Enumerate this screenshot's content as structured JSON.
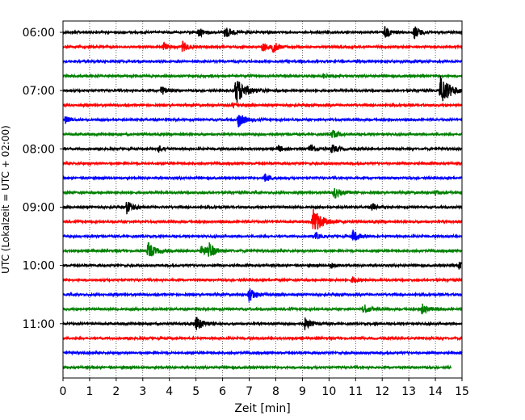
{
  "chart_data": {
    "type": "line",
    "xlabel": "Zeit  [min]",
    "ylabel": "UTC (Lokalzeit = UTC + 02:00)",
    "xlim": [
      0,
      15
    ],
    "x_ticks": [
      0,
      1,
      2,
      3,
      4,
      5,
      6,
      7,
      8,
      9,
      10,
      11,
      12,
      13,
      14,
      15
    ],
    "y_tick_labels": [
      "06:00",
      "07:00",
      "08:00",
      "09:00",
      "10:00",
      "11:00"
    ],
    "grid": "vertical-dotted",
    "colors": [
      "#000000",
      "#ff0000",
      "#0000ff",
      "#008000"
    ],
    "traces": [
      {
        "time": "06:00",
        "color": "#000000",
        "events": [
          {
            "t": 5.1,
            "a": 0.7
          },
          {
            "t": 6.1,
            "a": 1.0
          },
          {
            "t": 12.1,
            "a": 0.9
          },
          {
            "t": 13.2,
            "a": 1.0
          }
        ]
      },
      {
        "time": "06:15",
        "color": "#ff0000",
        "events": [
          {
            "t": 3.8,
            "a": 0.6
          },
          {
            "t": 4.5,
            "a": 0.8
          },
          {
            "t": 7.5,
            "a": 0.7
          },
          {
            "t": 7.9,
            "a": 0.8
          }
        ]
      },
      {
        "time": "06:30",
        "color": "#0000ff",
        "events": []
      },
      {
        "time": "06:45",
        "color": "#008000",
        "events": [
          {
            "t": 9.8,
            "a": 0.4
          }
        ]
      },
      {
        "time": "07:00",
        "color": "#000000",
        "events": [
          {
            "t": 3.7,
            "a": 0.7
          },
          {
            "t": 6.5,
            "a": 2.1
          },
          {
            "t": 14.2,
            "a": 2.2
          }
        ]
      },
      {
        "time": "07:15",
        "color": "#ff0000",
        "events": [
          {
            "t": 6.4,
            "a": 0.4
          }
        ]
      },
      {
        "time": "07:30",
        "color": "#0000ff",
        "events": [
          {
            "t": 0.1,
            "a": 0.5
          },
          {
            "t": 6.6,
            "a": 1.1
          }
        ]
      },
      {
        "time": "07:45",
        "color": "#008000",
        "events": [
          {
            "t": 10.1,
            "a": 0.7
          }
        ]
      },
      {
        "time": "08:00",
        "color": "#000000",
        "events": [
          {
            "t": 3.6,
            "a": 0.5
          },
          {
            "t": 8.1,
            "a": 0.5
          },
          {
            "t": 9.3,
            "a": 0.7
          },
          {
            "t": 10.1,
            "a": 0.7
          }
        ]
      },
      {
        "time": "08:15",
        "color": "#ff0000",
        "events": []
      },
      {
        "time": "08:30",
        "color": "#0000ff",
        "events": [
          {
            "t": 7.6,
            "a": 0.6
          }
        ]
      },
      {
        "time": "08:45",
        "color": "#008000",
        "events": [
          {
            "t": 10.2,
            "a": 0.9
          },
          {
            "t": 14.0,
            "a": 0.4
          }
        ]
      },
      {
        "time": "09:00",
        "color": "#000000",
        "events": [
          {
            "t": 2.4,
            "a": 1.0
          },
          {
            "t": 11.6,
            "a": 0.6
          }
        ]
      },
      {
        "time": "09:15",
        "color": "#ff0000",
        "events": [
          {
            "t": 9.4,
            "a": 2.0
          }
        ]
      },
      {
        "time": "09:30",
        "color": "#0000ff",
        "events": [
          {
            "t": 9.5,
            "a": 0.5
          },
          {
            "t": 10.9,
            "a": 0.9
          }
        ]
      },
      {
        "time": "09:45",
        "color": "#008000",
        "events": [
          {
            "t": 3.2,
            "a": 1.3
          },
          {
            "t": 5.2,
            "a": 0.9
          },
          {
            "t": 5.5,
            "a": 1.0
          }
        ]
      },
      {
        "time": "10:00",
        "color": "#000000",
        "events": [
          {
            "t": 10.1,
            "a": 0.4
          },
          {
            "t": 14.9,
            "a": 0.6
          }
        ]
      },
      {
        "time": "10:15",
        "color": "#ff0000",
        "events": [
          {
            "t": 10.9,
            "a": 0.5
          }
        ]
      },
      {
        "time": "10:30",
        "color": "#0000ff",
        "events": [
          {
            "t": 7.0,
            "a": 1.1
          }
        ]
      },
      {
        "time": "10:45",
        "color": "#008000",
        "events": [
          {
            "t": 11.3,
            "a": 0.8
          },
          {
            "t": 13.5,
            "a": 0.8
          }
        ]
      },
      {
        "time": "11:00",
        "color": "#000000",
        "events": [
          {
            "t": 5.0,
            "a": 1.2
          },
          {
            "t": 9.1,
            "a": 0.9
          }
        ]
      },
      {
        "time": "11:15",
        "color": "#ff0000",
        "events": []
      },
      {
        "time": "11:30",
        "color": "#0000ff",
        "events": []
      },
      {
        "time": "11:45",
        "color": "#008000",
        "events": [],
        "end": 14.6
      }
    ]
  }
}
